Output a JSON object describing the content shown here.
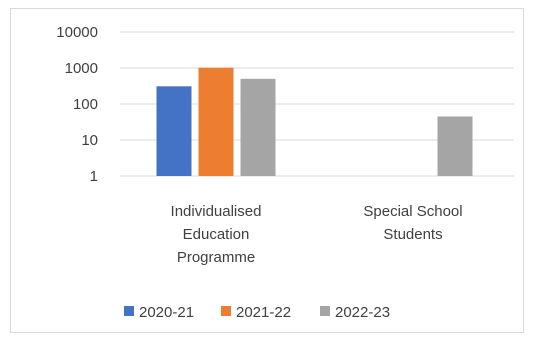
{
  "chart_data": {
    "type": "bar",
    "scale": "log",
    "ylim": [
      1,
      10000
    ],
    "y_ticks": [
      "1",
      "10",
      "100",
      "1000",
      "10000"
    ],
    "grid": true,
    "legend_position": "bottom",
    "categories": [
      [
        "Individualised",
        "Education",
        "Programme"
      ],
      [
        "Special School",
        "Students"
      ]
    ],
    "series": [
      {
        "name": "2020-21",
        "color": "#4472c4",
        "values": [
          310,
          null
        ]
      },
      {
        "name": "2021-22",
        "color": "#ed7d31",
        "values": [
          1020,
          null
        ]
      },
      {
        "name": "2022-23",
        "color": "#a5a5a5",
        "values": [
          500,
          45
        ]
      }
    ]
  }
}
